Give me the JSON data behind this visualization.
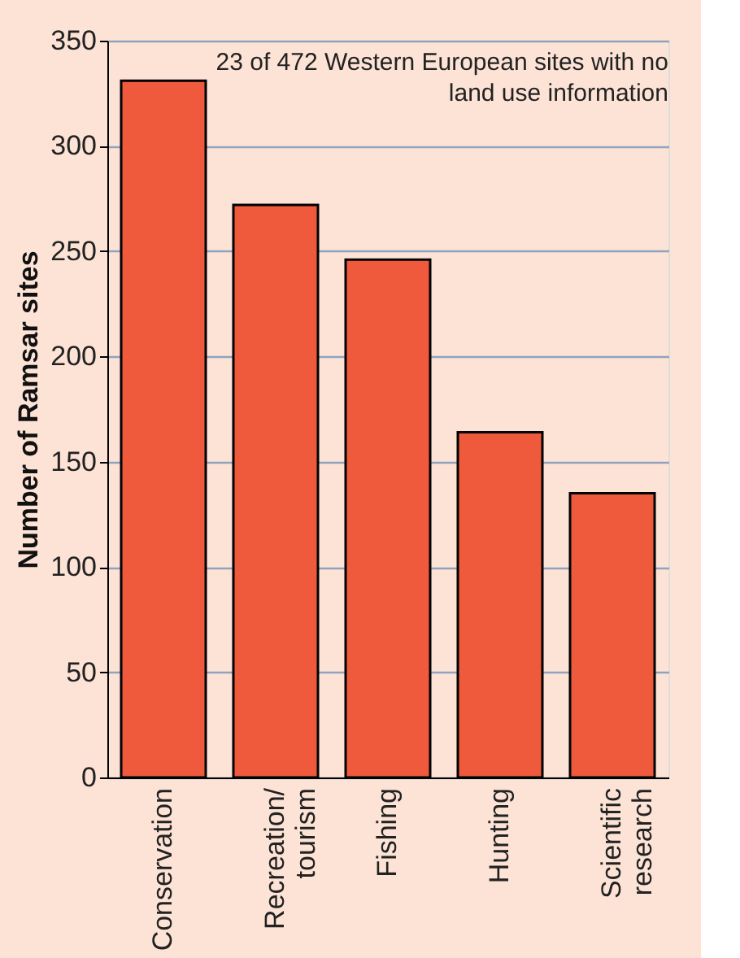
{
  "chart_data": {
    "type": "bar",
    "ylabel": "Number of Ramsar sites",
    "categories": [
      "Conservation",
      "Recreation/\ntourism",
      "Fishing",
      "Hunting",
      "Scientific\nresearch"
    ],
    "values": [
      331,
      272,
      246,
      164,
      135
    ],
    "color": "#ef5a3c",
    "ylim": [
      0,
      350
    ],
    "yticks": [
      0,
      50,
      100,
      150,
      200,
      250,
      300,
      350
    ],
    "grid": "y",
    "annotations": [
      "23 of 472 Western European sites with no\nland use information"
    ]
  }
}
